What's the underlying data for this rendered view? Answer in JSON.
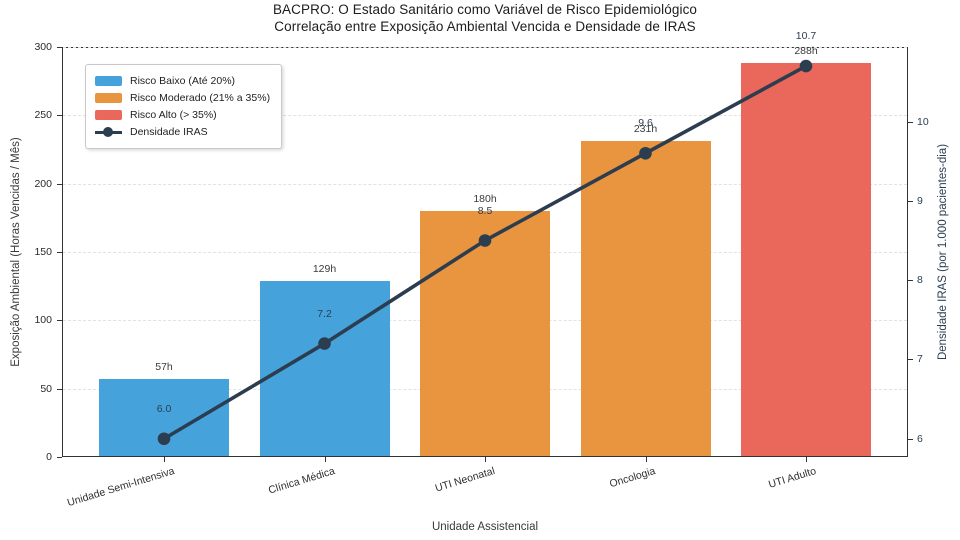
{
  "chart_data": {
    "type": "bar",
    "combo": "bar+line dual axis",
    "title": "BACPRO: O Estado Sanitário como Variável de Risco Epidemiológico",
    "subtitle": "Correlação entre Exposição Ambiental Vencida e Densidade de IRAS",
    "xlabel": "Unidade Assistencial",
    "ylabel_left": "Exposição Ambiental (Horas Vencidas / Mês)",
    "ylabel_right": "Densidade IRAS (por 1.000 pacientes-dia)",
    "categories": [
      "Unidade Semi-Intensiva",
      "Clínica Médica",
      "UTI Neonatal",
      "Oncologia",
      "UTI Adulto"
    ],
    "series": [
      {
        "name": "Exposição Ambiental (Horas Vencidas / Mês)",
        "type": "bar",
        "values": [
          57,
          129,
          180,
          231,
          288
        ],
        "labels": [
          "57h",
          "129h",
          "180h",
          "231h",
          "288h"
        ],
        "colors": [
          "#45a2db",
          "#45a2db",
          "#e9953f",
          "#e9953f",
          "#e9685b"
        ]
      },
      {
        "name": "Densidade IRAS",
        "type": "line",
        "values": [
          6.0,
          7.2,
          8.5,
          9.6,
          10.7
        ],
        "labels": [
          "6.0",
          "7.2",
          "8.5",
          "9.6",
          "10.7"
        ],
        "color": "#2b3d4f"
      }
    ],
    "left_axis": {
      "min": 0,
      "max": 300,
      "ticks": [
        0,
        50,
        100,
        150,
        200,
        250,
        300
      ]
    },
    "right_axis": {
      "min": 5.77,
      "max": 10.94,
      "ticks": [
        6,
        7,
        8,
        9,
        10
      ]
    },
    "grid": "horizontal dashed at left-axis ticks",
    "legend_position": "upper left",
    "legend": [
      {
        "label": "Risco Baixo (Até 20%)",
        "type": "swatch",
        "color": "#45a2db"
      },
      {
        "label": "Risco Moderado (21% a 35%)",
        "type": "swatch",
        "color": "#e9953f"
      },
      {
        "label": "Risco Alto (> 35%)",
        "type": "swatch",
        "color": "#e9685b"
      },
      {
        "label": "Densidade IRAS",
        "type": "line",
        "color": "#2b3d4f"
      }
    ],
    "colors": {
      "risk_low": "#45a2db",
      "risk_moderate": "#e9953f",
      "risk_high": "#e9685b",
      "line": "#2b3d4f",
      "grid": "#e2e2e2",
      "spine": "#333333"
    }
  }
}
